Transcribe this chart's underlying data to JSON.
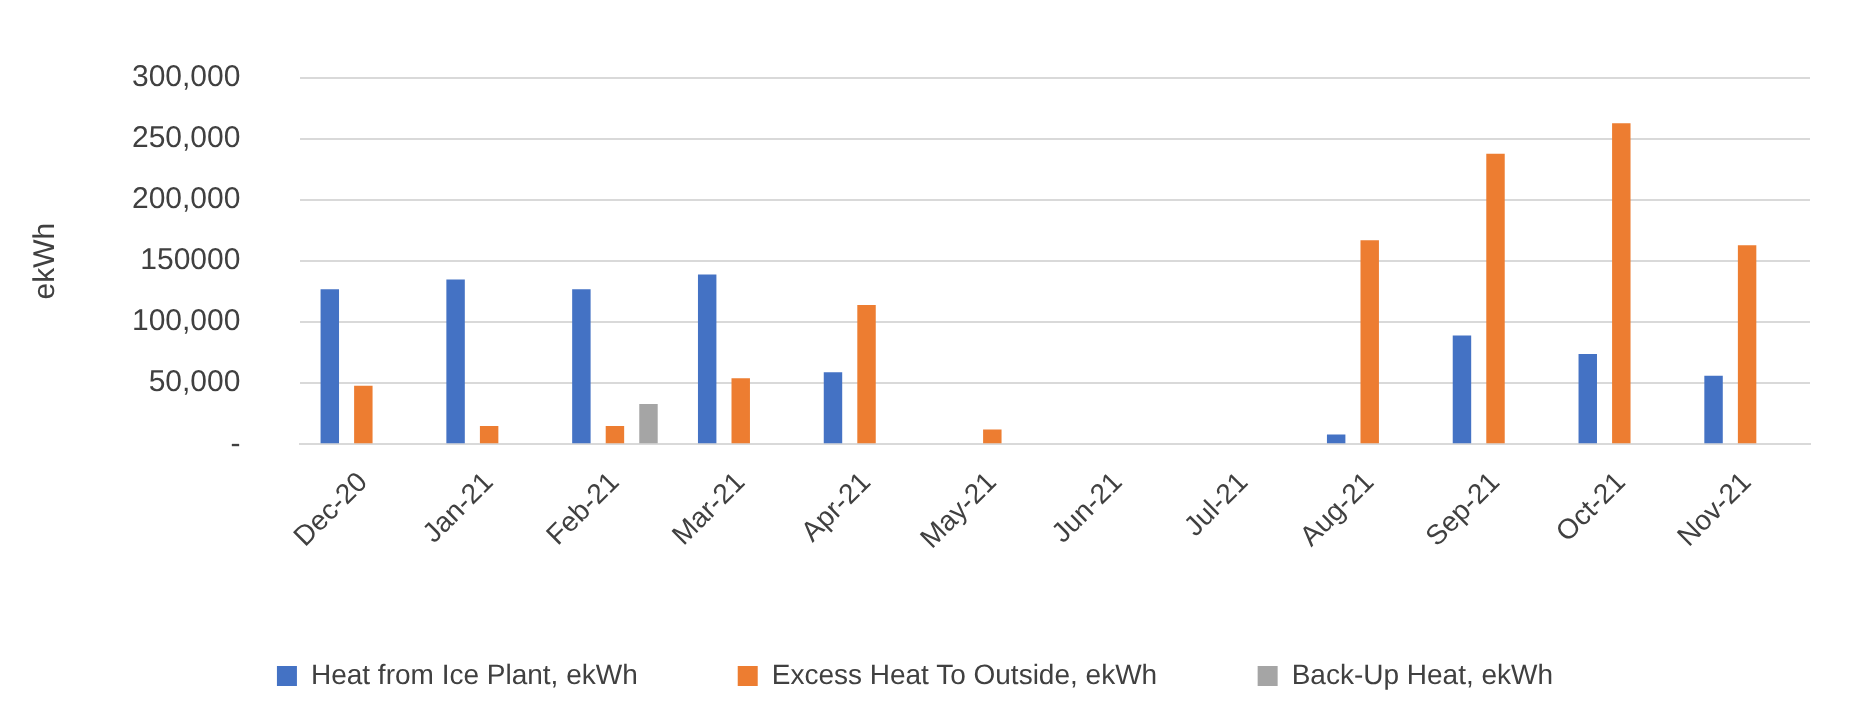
{
  "chart_data": {
    "type": "bar",
    "ylabel": "ekWh",
    "categories": [
      "Dec-20",
      "Jan-21",
      "Feb-21",
      "Mar-21",
      "Apr-21",
      "May-21",
      "Jun-21",
      "Jul-21",
      "Aug-21",
      "Sep-21",
      "Oct-21",
      "Nov-21"
    ],
    "series": [
      {
        "name": "Heat from Ice Plant, ekWh",
        "color": "#4472c4",
        "values": [
          127000,
          135000,
          127000,
          139000,
          59000,
          0,
          0,
          0,
          8000,
          89000,
          74000,
          56000
        ]
      },
      {
        "name": "Excess Heat To Outside, ekWh",
        "color": "#ed7d31",
        "values": [
          48000,
          15000,
          15000,
          54000,
          114000,
          12000,
          0,
          0,
          167000,
          238000,
          263000,
          163000
        ]
      },
      {
        "name": "Back-Up Heat, ekWh",
        "color": "#a5a5a5",
        "values": [
          0,
          0,
          33000,
          0,
          0,
          0,
          0,
          0,
          0,
          0,
          0,
          0
        ]
      }
    ],
    "ylim": [
      0,
      300000
    ],
    "yticks": [
      {
        "value": 0,
        "label": "-"
      },
      {
        "value": 50000,
        "label": "50,000"
      },
      {
        "value": 100000,
        "label": "100,000"
      },
      {
        "value": 150000,
        "label": "150000"
      },
      {
        "value": 200000,
        "label": "200,000"
      },
      {
        "value": 250000,
        "label": "250,000"
      },
      {
        "value": 300000,
        "label": "300,000"
      }
    ],
    "grid": "y",
    "legend": "bottom"
  }
}
